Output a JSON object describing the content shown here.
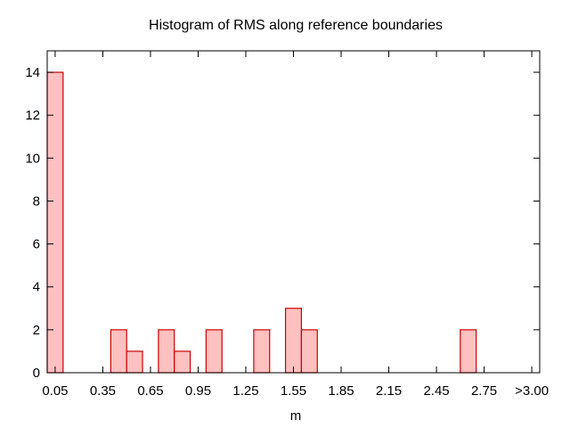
{
  "chart_data": {
    "type": "bar",
    "title": "Histogram of RMS along reference boundaries",
    "xlabel": "m",
    "ylabel": "",
    "ylim": [
      0,
      15
    ],
    "yticks": [
      0,
      2,
      4,
      6,
      8,
      10,
      12,
      14
    ],
    "xticks": [
      "0.05",
      "0.35",
      "0.65",
      "0.95",
      "1.25",
      "1.55",
      "1.85",
      "2.15",
      "2.45",
      "2.75",
      ">3.00"
    ],
    "bin_width": 0.1,
    "bins": [
      {
        "center": 0.05,
        "count": 14
      },
      {
        "center": 0.45,
        "count": 2
      },
      {
        "center": 0.55,
        "count": 1
      },
      {
        "center": 0.75,
        "count": 2
      },
      {
        "center": 0.85,
        "count": 1
      },
      {
        "center": 1.05,
        "count": 2
      },
      {
        "center": 1.35,
        "count": 2
      },
      {
        "center": 1.55,
        "count": 3
      },
      {
        "center": 1.65,
        "count": 2
      },
      {
        "center": 2.65,
        "count": 2
      }
    ],
    "colors": {
      "bar_fill": "#ffc0c0",
      "bar_stroke": "#cc0000"
    },
    "grid": false,
    "legend": "none"
  }
}
